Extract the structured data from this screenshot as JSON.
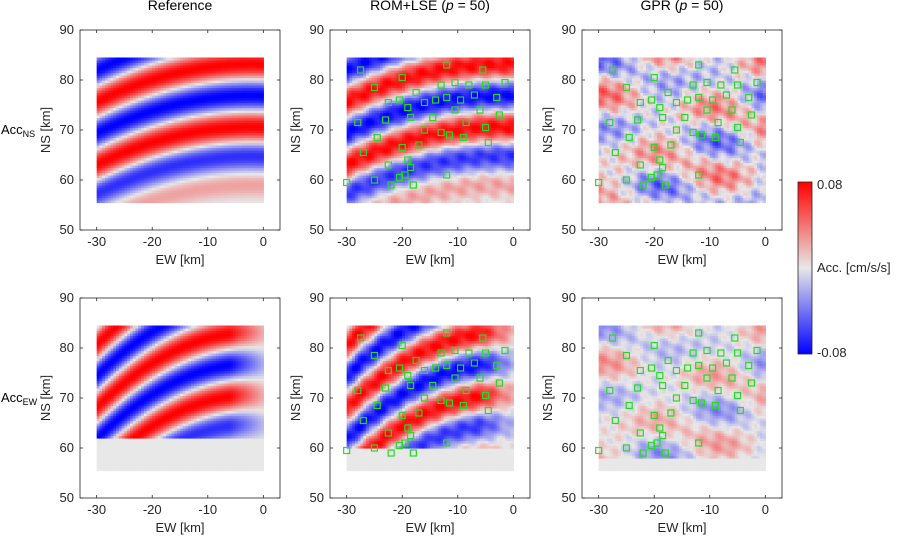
{
  "colors": {
    "positive": "#ff0000",
    "neutral": "#e8e8e8",
    "negative": "#0000ff",
    "station": "#22dd22",
    "axis": "#262626"
  },
  "column_titles": [
    {
      "pre": "Reference",
      "italic": "",
      "post": ""
    },
    {
      "pre": "ROM+LSE (",
      "italic": "p",
      "post": " = 50)"
    },
    {
      "pre": "GPR (",
      "italic": "p",
      "post": " = 50)"
    }
  ],
  "row_labels": [
    {
      "main": "Acc",
      "sub": "NS"
    },
    {
      "main": "Acc",
      "sub": "EW"
    }
  ],
  "colorbar": {
    "max_label": "0.08",
    "min_label": "-0.08",
    "unit_label": "Acc. [cm/s/s]",
    "max": 0.08,
    "min": -0.08
  },
  "chart_data": {
    "type": "heatmap",
    "xlabel": "EW [km]",
    "ylabel": "NS [km]",
    "xlim": [
      -33,
      3
    ],
    "ylim": [
      50,
      90
    ],
    "xticks": [
      -30,
      -20,
      -10,
      0
    ],
    "yticks": [
      50,
      60,
      70,
      80,
      90
    ],
    "field_extent": {
      "x": [
        -30,
        0
      ],
      "y": [
        55.5,
        84.5
      ]
    },
    "value_range": [
      -0.08,
      0.08
    ],
    "stations": [
      [
        -27.5,
        82
      ],
      [
        -25,
        78.5
      ],
      [
        -20,
        80.5
      ],
      [
        -20.5,
        76
      ],
      [
        -17.5,
        77.5
      ],
      [
        -19,
        74.5
      ],
      [
        -16,
        75.5
      ],
      [
        -14,
        76
      ],
      [
        -13,
        79
      ],
      [
        -12,
        83
      ],
      [
        -10.5,
        79.5
      ],
      [
        -12,
        76.5
      ],
      [
        -8,
        79
      ],
      [
        -7,
        77
      ],
      [
        -5.5,
        82
      ],
      [
        -5,
        79
      ],
      [
        -3,
        76.5
      ],
      [
        -1.5,
        79.5
      ],
      [
        -9.5,
        76
      ],
      [
        -10.5,
        74
      ],
      [
        -6,
        74
      ],
      [
        -22.5,
        75.5
      ],
      [
        -23,
        72
      ],
      [
        -18.5,
        72.5
      ],
      [
        -14.5,
        72.5
      ],
      [
        -8.5,
        71.5
      ],
      [
        -2.5,
        73
      ],
      [
        -28,
        71.5
      ],
      [
        -24.5,
        68.5
      ],
      [
        -13,
        69.5
      ],
      [
        -11.5,
        69
      ],
      [
        -9,
        68.5
      ],
      [
        -5,
        70.5
      ],
      [
        -16,
        70
      ],
      [
        -17,
        67
      ],
      [
        -4.5,
        67.5
      ],
      [
        -27,
        65.5
      ],
      [
        -20,
        66.5
      ],
      [
        -19,
        64
      ],
      [
        -22.5,
        63
      ],
      [
        -18.5,
        62.5
      ],
      [
        -19.5,
        61
      ],
      [
        -20.5,
        60.5
      ],
      [
        -12,
        61
      ],
      [
        -30,
        59.5
      ],
      [
        -25,
        60
      ],
      [
        -22,
        59
      ],
      [
        -18,
        59
      ]
    ],
    "panels": [
      {
        "row": "Acc NS",
        "column": "Reference",
        "pattern": "arcs",
        "amplitude": 1.0,
        "noise": 0.0,
        "cutoff_y": 55.5
      },
      {
        "row": "Acc NS",
        "column": "ROM+LSE (p = 50)",
        "pattern": "arcs",
        "amplitude": 0.95,
        "noise": 0.12,
        "cutoff_y": 55.5
      },
      {
        "row": "Acc NS",
        "column": "GPR (p = 50)",
        "pattern": "blobs",
        "amplitude": 0.65,
        "noise": 0.35,
        "cutoff_y": 55.5
      },
      {
        "row": "Acc EW",
        "column": "Reference",
        "pattern": "arcs",
        "amplitude": 1.0,
        "noise": 0.0,
        "cutoff_y": 62
      },
      {
        "row": "Acc EW",
        "column": "ROM+LSE (p = 50)",
        "pattern": "arcs",
        "amplitude": 0.95,
        "noise": 0.12,
        "cutoff_y": 60
      },
      {
        "row": "Acc EW",
        "column": "GPR (p = 50)",
        "pattern": "blobs",
        "amplitude": 0.45,
        "noise": 0.3,
        "cutoff_y": 58
      }
    ]
  }
}
